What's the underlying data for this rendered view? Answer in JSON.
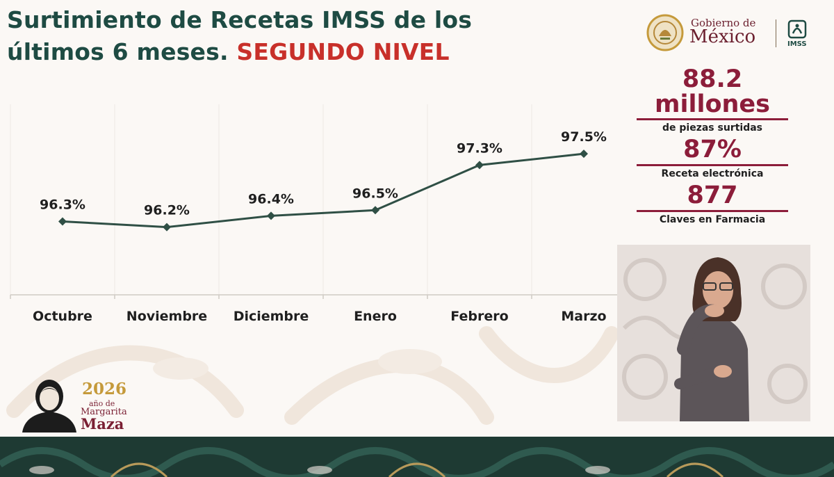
{
  "title": {
    "line1": "Surtimiento de Recetas IMSS de los",
    "line2": "últimos 6 meses. ",
    "highlight": "SEGUNDO NIVEL"
  },
  "logo": {
    "gob_small": "Gobierno de",
    "gob_big": "México",
    "imss": "IMSS"
  },
  "stats": [
    {
      "value_line1": "88.2",
      "value_line2": "millones",
      "label": "de piezas surtidas"
    },
    {
      "value_line1": "87%",
      "label": "Receta electrónica"
    },
    {
      "value_line1": "877",
      "label": "Claves en Farmacia"
    }
  ],
  "footer_brand": {
    "year": "2026",
    "ano": "año de",
    "name1": "Margarita",
    "name2": "Maza"
  },
  "colors": {
    "title": "#1e4b43",
    "highlight": "#c8302a",
    "line": "#2f4f45",
    "stat_accent": "#8c1d3a"
  },
  "chart_data": {
    "type": "line",
    "categories": [
      "Octubre",
      "Noviembre",
      "Diciembre",
      "Enero",
      "Febrero",
      "Marzo"
    ],
    "values": [
      96.3,
      96.2,
      96.4,
      96.5,
      97.3,
      97.5
    ],
    "value_labels": [
      "96.3%",
      "96.2%",
      "96.4%",
      "96.5%",
      "97.3%",
      "97.5%"
    ],
    "unit": "%",
    "ylim": [
      95.0,
      98.5
    ],
    "grid": "vertical",
    "legend": "none"
  }
}
